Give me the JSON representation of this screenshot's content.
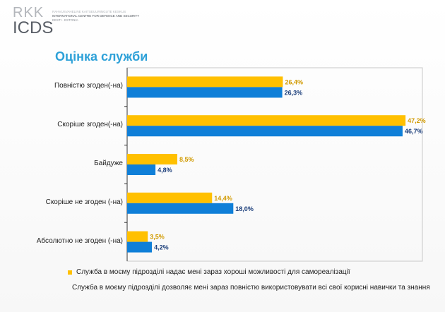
{
  "logo": {
    "rkk": "RKK",
    "icds": "ICDS",
    "line1": "RAHVUSVAHELINE KAITSEUURINGUTE KESKUS",
    "line2": "INTERNATIONAL CENTRE FOR DEFENCE AND SECURITY",
    "line3": "EESTI · ESTONIA"
  },
  "colors": {
    "series1": "#ffc000",
    "series2": "#0f7fd8",
    "title": "#2ea1d8",
    "label1": "#d19a00",
    "label2": "#1a3d7a"
  },
  "chart_data": {
    "type": "bar",
    "orientation": "horizontal",
    "title": "Оцінка служби",
    "categories": [
      "Повністю згоден(-на)",
      "Скоріше згоден(-на)",
      "Байдуже",
      "Скоріше не згоден (-на)",
      "Абсолютно не згоден  (-на)"
    ],
    "series": [
      {
        "name": "Служба в моєму підрозділі надає мені зараз хороші можливості для самореалізації",
        "values": [
          26.4,
          47.2,
          8.5,
          14.4,
          3.5
        ],
        "labels": [
          "26,4%",
          "47,2%",
          "8,5%",
          "14,4%",
          "3,5%"
        ]
      },
      {
        "name": "Служба в моєму підрозділі дозволяє мені зараз повністю використовувати всі свої корисні навички та знання",
        "values": [
          26.3,
          46.7,
          4.8,
          18.0,
          4.2
        ],
        "labels": [
          "26,3%",
          "46,7%",
          "4,8%",
          "18,0%",
          "4,2%"
        ]
      }
    ],
    "xlim": [
      0,
      50
    ],
    "unit": "%",
    "legend": "bottom",
    "grid": false
  }
}
